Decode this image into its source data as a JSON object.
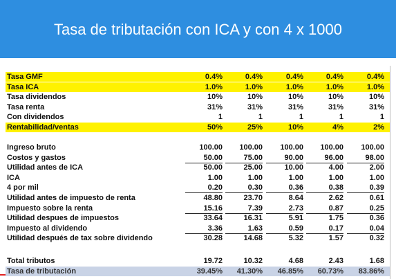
{
  "title": "Tasa de tributación con ICA y con 4 x 1000",
  "rates": {
    "rows": [
      {
        "label": "Tasa GMF",
        "values": [
          "0.4%",
          "0.4%",
          "0.4%",
          "0.4%",
          "0.4%"
        ]
      },
      {
        "label": "Tasa ICA",
        "values": [
          "1.0%",
          "1.0%",
          "1.0%",
          "1.0%",
          "1.0%"
        ]
      },
      {
        "label": "Tasa dividendos",
        "values": [
          "10%",
          "10%",
          "10%",
          "10%",
          "10%"
        ]
      },
      {
        "label": "Tasa renta",
        "values": [
          "31%",
          "31%",
          "31%",
          "31%",
          "31%"
        ]
      },
      {
        "label": "Con dividendos",
        "values": [
          "1",
          "1",
          "1",
          "1",
          "1"
        ]
      },
      {
        "label": "Rentabilidad/ventas",
        "values": [
          "50%",
          "25%",
          "10%",
          "4%",
          "2%"
        ]
      }
    ]
  },
  "results": {
    "rows": [
      {
        "label": "Ingreso bruto",
        "values": [
          "100.00",
          "100.00",
          "100.00",
          "100.00",
          "100.00"
        ]
      },
      {
        "label": "Costos y gastos",
        "values": [
          "50.00",
          "75.00",
          "90.00",
          "96.00",
          "98.00"
        ]
      },
      {
        "label": "Utilidad antes de ICA",
        "values": [
          "50.00",
          "25.00",
          "10.00",
          "4.00",
          "2.00"
        ]
      },
      {
        "label": "ICA",
        "values": [
          "1.00",
          "1.00",
          "1.00",
          "1.00",
          "1.00"
        ]
      },
      {
        "label": "4 por mil",
        "values": [
          "0.20",
          "0.30",
          "0.36",
          "0.38",
          "0.39"
        ]
      },
      {
        "label": "Utilidad antes de impuesto de renta",
        "values": [
          "48.80",
          "23.70",
          "8.64",
          "2.62",
          "0.61"
        ]
      },
      {
        "label": "Impuesto sobre la renta",
        "values": [
          "15.16",
          "7.39",
          "2.73",
          "0.87",
          "0.25"
        ]
      },
      {
        "label": "Utilidad despues de impuestos",
        "values": [
          "33.64",
          "16.31",
          "5.91",
          "1.75",
          "0.36"
        ]
      },
      {
        "label": "Impuesto al dividendo",
        "values": [
          "3.36",
          "1.63",
          "0.59",
          "0.17",
          "0.04"
        ]
      },
      {
        "label": "Utilidad después de tax sobre dividendo",
        "values": [
          "30.28",
          "14.68",
          "5.32",
          "1.57",
          "0.32"
        ]
      }
    ]
  },
  "totals": {
    "rows": [
      {
        "label": "Total tributos",
        "values": [
          "19.72",
          "10.32",
          "4.68",
          "2.43",
          "1.68"
        ]
      },
      {
        "label": "Tasa de tributación",
        "values": [
          "39.45%",
          "41.30%",
          "46.85%",
          "60.73%",
          "83.86%"
        ]
      }
    ]
  }
}
